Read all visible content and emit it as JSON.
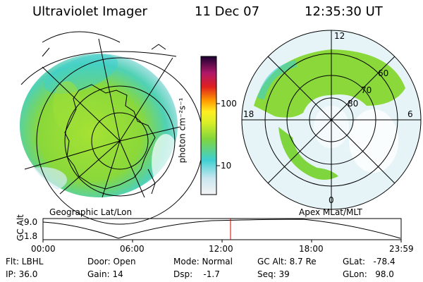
{
  "header": {
    "instrument": "Ultraviolet Imager",
    "date": "11 Dec 07",
    "time": "12:35:30 UT"
  },
  "left_map": {
    "caption": "Geographic Lat/Lon"
  },
  "right_map": {
    "caption": "Apex MLat/MLT",
    "mlt_labels": {
      "top": "12",
      "left": "18",
      "right": "6",
      "bottom": "0"
    },
    "lat_labels": [
      "60",
      "70",
      "80"
    ]
  },
  "colorbar": {
    "unit_label": "photon cm⁻²s⁻¹",
    "ticks": [
      "100",
      "10"
    ]
  },
  "orbit": {
    "ylabel": "GC Alt",
    "yticks": [
      "9.0",
      "1.8"
    ],
    "xticks": [
      "00:00",
      "06:00",
      "12:00",
      "18:00",
      "23:59"
    ],
    "marker_time": "12:35"
  },
  "status": {
    "filter": "Flt: LBHL",
    "ip": "IP: 36.0",
    "door": "Door: Open",
    "gain": "Gain: 14",
    "mode": "Mode: Normal",
    "dsp": "Dsp:    -1.7",
    "gc_alt": "GC Alt: 8.7 Re",
    "seq": "Seq: 39",
    "glat": "GLat:   -78.4",
    "glon": "GLon:   98.0"
  }
}
